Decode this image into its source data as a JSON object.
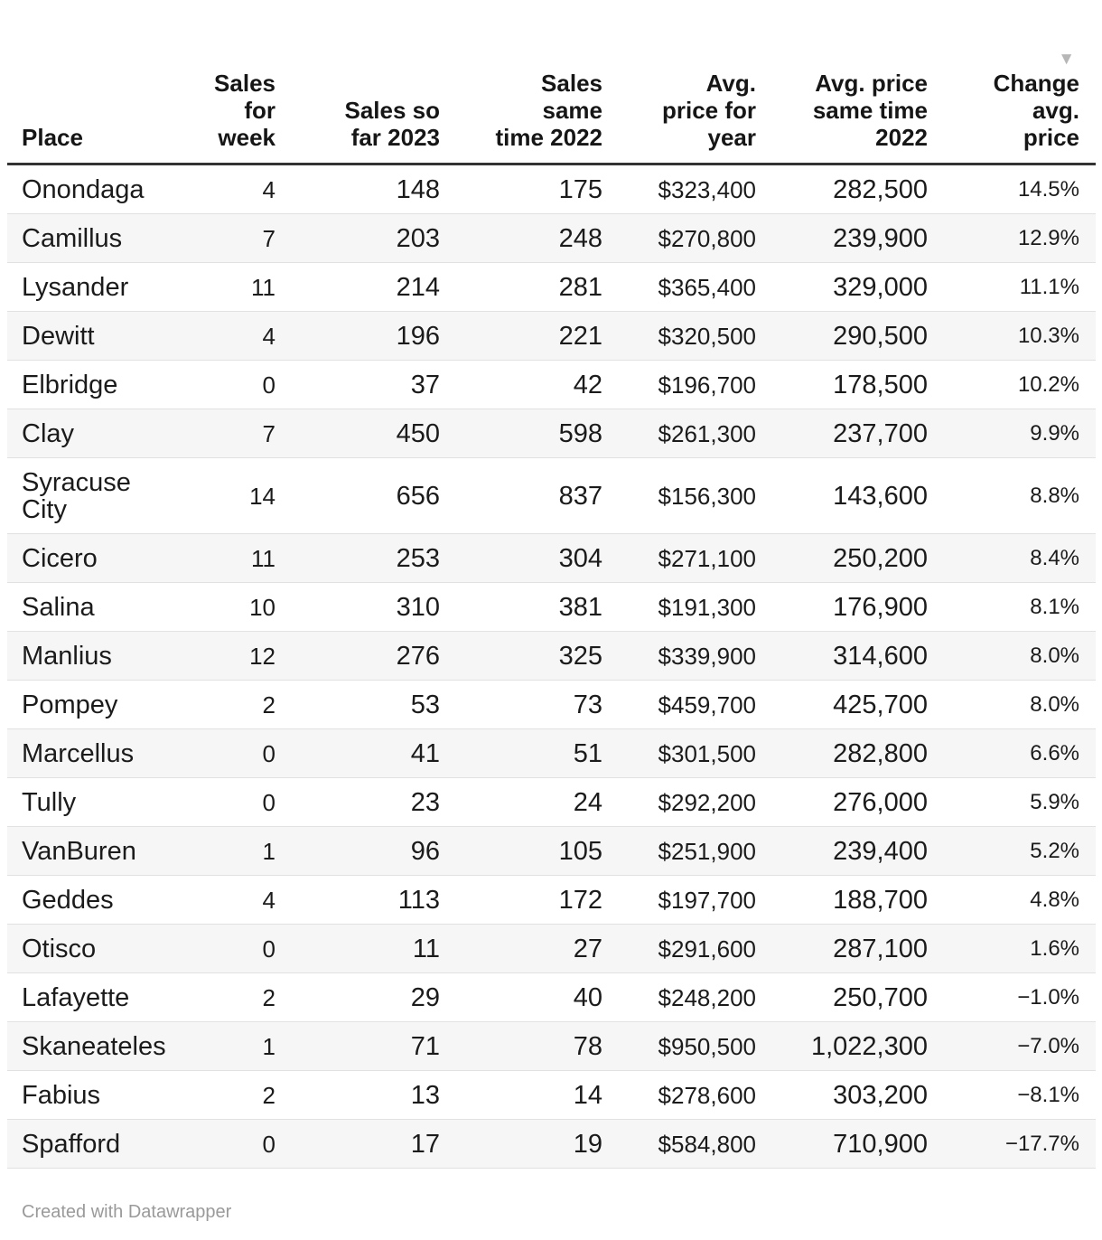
{
  "chart_data": {
    "type": "table",
    "sorted_by": "Change avg. price",
    "sort_direction": "descending",
    "grid": "row-separators",
    "legend_position": "none",
    "columns": [
      {
        "key": "place",
        "label": "Place",
        "align": "left"
      },
      {
        "key": "sales-for-week",
        "label": "Sales\nfor\nweek",
        "align": "right"
      },
      {
        "key": "sales-so-far-2023",
        "label": "Sales so\nfar 2023",
        "align": "right"
      },
      {
        "key": "sales-same-time-2022",
        "label": "Sales\nsame\ntime 2022",
        "align": "right"
      },
      {
        "key": "avg-price-for-year",
        "label": "Avg.\nprice for\nyear",
        "align": "right"
      },
      {
        "key": "avg-price-same-time-2022",
        "label": "Avg. price\nsame time\n2022",
        "align": "right"
      },
      {
        "key": "change-avg-price",
        "label": "Change\navg.\nprice",
        "align": "right",
        "sorted": "descending"
      }
    ],
    "rows": [
      [
        "Onondaga",
        "4",
        "148",
        "175",
        "$323,400",
        "282,500",
        "14.5%"
      ],
      [
        "Camillus",
        "7",
        "203",
        "248",
        "$270,800",
        "239,900",
        "12.9%"
      ],
      [
        "Lysander",
        "11",
        "214",
        "281",
        "$365,400",
        "329,000",
        "11.1%"
      ],
      [
        "Dewitt",
        "4",
        "196",
        "221",
        "$320,500",
        "290,500",
        "10.3%"
      ],
      [
        "Elbridge",
        "0",
        "37",
        "42",
        "$196,700",
        "178,500",
        "10.2%"
      ],
      [
        "Clay",
        "7",
        "450",
        "598",
        "$261,300",
        "237,700",
        "9.9%"
      ],
      [
        "Syracuse City",
        "14",
        "656",
        "837",
        "$156,300",
        "143,600",
        "8.8%"
      ],
      [
        "Cicero",
        "11",
        "253",
        "304",
        "$271,100",
        "250,200",
        "8.4%"
      ],
      [
        "Salina",
        "10",
        "310",
        "381",
        "$191,300",
        "176,900",
        "8.1%"
      ],
      [
        "Manlius",
        "12",
        "276",
        "325",
        "$339,900",
        "314,600",
        "8.0%"
      ],
      [
        "Pompey",
        "2",
        "53",
        "73",
        "$459,700",
        "425,700",
        "8.0%"
      ],
      [
        "Marcellus",
        "0",
        "41",
        "51",
        "$301,500",
        "282,800",
        "6.6%"
      ],
      [
        "Tully",
        "0",
        "23",
        "24",
        "$292,200",
        "276,000",
        "5.9%"
      ],
      [
        "VanBuren",
        "1",
        "96",
        "105",
        "$251,900",
        "239,400",
        "5.2%"
      ],
      [
        "Geddes",
        "4",
        "113",
        "172",
        "$197,700",
        "188,700",
        "4.8%"
      ],
      [
        "Otisco",
        "0",
        "11",
        "27",
        "$291,600",
        "287,100",
        "1.6%"
      ],
      [
        "Lafayette",
        "2",
        "29",
        "40",
        "$248,200",
        "250,700",
        "−1.0%"
      ],
      [
        "Skaneateles",
        "1",
        "71",
        "78",
        "$950,500",
        "1,022,300",
        "−7.0%"
      ],
      [
        "Fabius",
        "2",
        "13",
        "14",
        "$278,600",
        "303,200",
        "−8.1%"
      ],
      [
        "Spafford",
        "0",
        "17",
        "19",
        "$584,800",
        "710,900",
        "−17.7%"
      ]
    ]
  },
  "icons": {
    "sort_descending": "▼"
  },
  "colors": {
    "header_border": "#333333",
    "row_stripe": "#f6f6f6",
    "row_separator": "#e1e1e1",
    "text": "#1b1b1b",
    "sort_arrow": "#b7b7b7",
    "footer_text": "#9a9a9a"
  },
  "footer": {
    "credit": "Created with Datawrapper"
  }
}
